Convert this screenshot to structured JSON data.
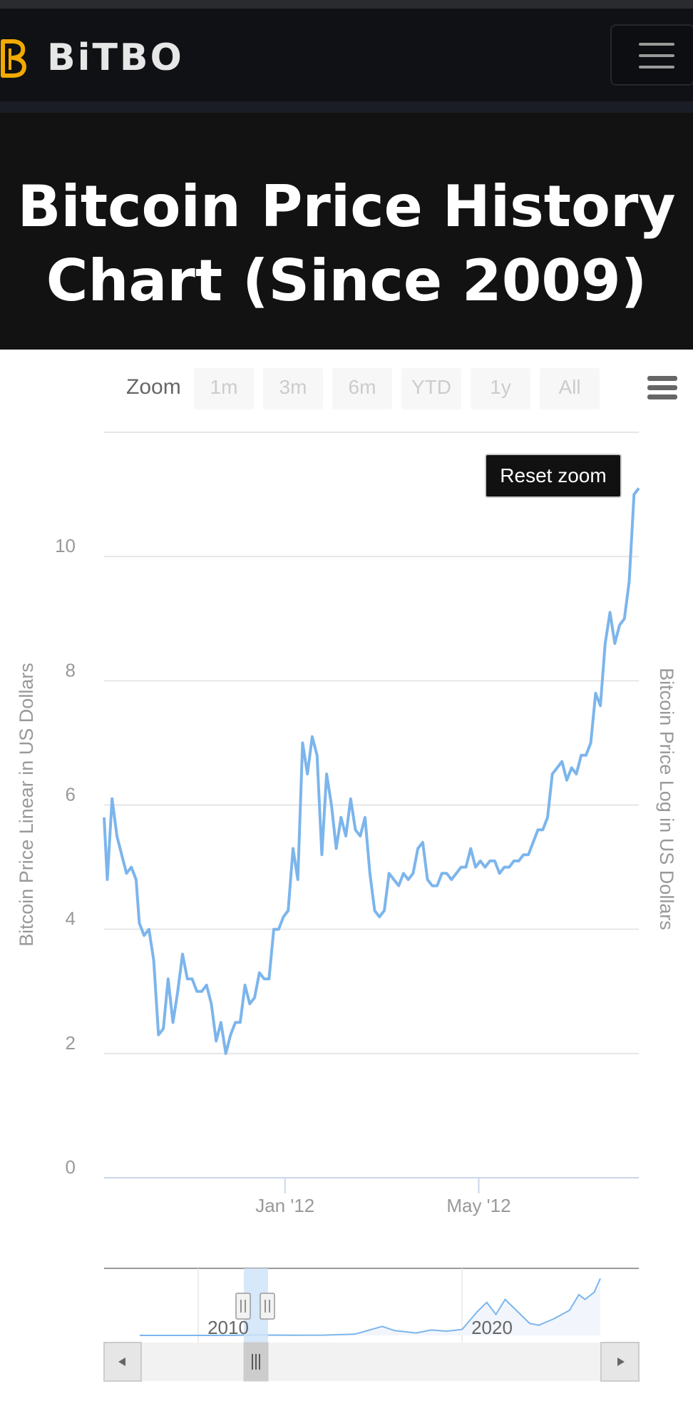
{
  "header": {
    "logo_text": "BiTBO",
    "colors": {
      "brand_orange": "#f2a900",
      "navbar": "#101114",
      "hero": "#121212"
    }
  },
  "hero": {
    "title": "Bitcoin Price History Chart (Since 2009)"
  },
  "zoom_bar": {
    "label": "Zoom",
    "buttons": [
      "1m",
      "3m",
      "6m",
      "YTD",
      "1y",
      "All"
    ]
  },
  "reset_zoom_label": "Reset zoom",
  "export_menu_icon": "hamburger-menu-icon",
  "chart_data": {
    "type": "line",
    "series": [
      {
        "color": "#7cb5ec",
        "x": [
          "2011-09-10",
          "2011-09-12",
          "2011-09-15",
          "2011-09-18",
          "2011-09-21",
          "2011-09-24",
          "2011-09-27",
          "2011-09-30",
          "2011-10-02",
          "2011-10-05",
          "2011-10-08",
          "2011-10-11",
          "2011-10-14",
          "2011-10-17",
          "2011-10-20",
          "2011-10-23",
          "2011-10-26",
          "2011-10-29",
          "2011-11-01",
          "2011-11-04",
          "2011-11-07",
          "2011-11-10",
          "2011-11-13",
          "2011-11-16",
          "2011-11-19",
          "2011-11-22",
          "2011-11-25",
          "2011-11-28",
          "2011-12-01",
          "2011-12-04",
          "2011-12-07",
          "2011-12-10",
          "2011-12-13",
          "2011-12-16",
          "2011-12-19",
          "2011-12-22",
          "2011-12-25",
          "2011-12-28",
          "2011-12-31",
          "2012-01-03",
          "2012-01-06",
          "2012-01-09",
          "2012-01-12",
          "2012-01-15",
          "2012-01-18",
          "2012-01-21",
          "2012-01-24",
          "2012-01-27",
          "2012-01-30",
          "2012-02-02",
          "2012-02-05",
          "2012-02-08",
          "2012-02-11",
          "2012-02-14",
          "2012-02-17",
          "2012-02-20",
          "2012-02-23",
          "2012-02-26",
          "2012-02-29",
          "2012-03-03",
          "2012-03-06",
          "2012-03-09",
          "2012-03-12",
          "2012-03-15",
          "2012-03-18",
          "2012-03-21",
          "2012-03-24",
          "2012-03-27",
          "2012-03-30",
          "2012-04-02",
          "2012-04-05",
          "2012-04-08",
          "2012-04-11",
          "2012-04-14",
          "2012-04-17",
          "2012-04-20",
          "2012-04-23",
          "2012-04-26",
          "2012-04-29",
          "2012-05-02",
          "2012-05-05",
          "2012-05-08",
          "2012-05-11",
          "2012-05-14",
          "2012-05-17",
          "2012-05-20",
          "2012-05-23",
          "2012-05-26",
          "2012-05-29",
          "2012-06-01",
          "2012-06-04",
          "2012-06-07",
          "2012-06-10",
          "2012-06-13",
          "2012-06-16",
          "2012-06-19",
          "2012-06-22",
          "2012-06-25",
          "2012-06-28",
          "2012-07-01",
          "2012-07-04",
          "2012-07-07",
          "2012-07-10",
          "2012-07-13",
          "2012-07-16",
          "2012-07-19",
          "2012-07-22",
          "2012-07-25",
          "2012-07-28",
          "2012-07-31",
          "2012-08-03",
          "2012-08-06",
          "2012-08-09"
        ],
        "y": [
          5.8,
          4.8,
          6.1,
          5.5,
          5.2,
          4.9,
          5.0,
          4.8,
          4.1,
          3.9,
          4.0,
          3.5,
          2.3,
          2.4,
          3.2,
          2.5,
          3.0,
          3.6,
          3.2,
          3.2,
          3.0,
          3.0,
          3.1,
          2.8,
          2.2,
          2.5,
          2.0,
          2.3,
          2.5,
          2.5,
          3.1,
          2.8,
          2.9,
          3.3,
          3.2,
          3.2,
          4.0,
          4.0,
          4.2,
          4.3,
          5.3,
          4.8,
          7.0,
          6.5,
          7.1,
          6.8,
          5.2,
          6.5,
          6.0,
          5.3,
          5.8,
          5.5,
          6.1,
          5.6,
          5.5,
          5.8,
          4.9,
          4.3,
          4.2,
          4.3,
          4.9,
          4.8,
          4.7,
          4.9,
          4.8,
          4.9,
          5.3,
          5.4,
          4.8,
          4.7,
          4.7,
          4.9,
          4.9,
          4.8,
          4.9,
          5.0,
          5.0,
          5.3,
          5.0,
          5.1,
          5.0,
          5.1,
          5.1,
          4.9,
          5.0,
          5.0,
          5.1,
          5.1,
          5.2,
          5.2,
          5.4,
          5.6,
          5.6,
          5.8,
          6.5,
          6.6,
          6.7,
          6.4,
          6.6,
          6.5,
          6.8,
          6.8,
          7.0,
          7.8,
          7.6,
          8.6,
          9.1,
          8.6,
          8.9,
          9.0,
          9.6,
          11.0,
          11.1
        ]
      }
    ],
    "xaxis": {
      "ticks": [
        "Jan '12",
        "May '12"
      ]
    },
    "yaxis_left": {
      "title": "Bitcoin Price Linear in US Dollars",
      "ticks": [
        0,
        2,
        4,
        6,
        8,
        10
      ],
      "range": [
        0,
        12
      ]
    },
    "yaxis_right": {
      "title": "Bitcoin Price Log in US Dollars"
    },
    "navigator": {
      "ticks": [
        "2010",
        "2020"
      ],
      "selection_range": [
        "2011-09-10",
        "2012-08-09"
      ],
      "overview_x": [
        2010.0,
        2011.0,
        2012.0,
        2013.0,
        2013.9,
        2014.2,
        2015.0,
        2016.0,
        2017.0,
        2017.9,
        2018.3,
        2019.0,
        2019.5,
        2020.0,
        2020.5,
        2021.0,
        2021.3,
        2021.6,
        2021.9,
        2022.3,
        2022.7,
        2023.0,
        2023.5,
        2024.0,
        2024.3,
        2024.5,
        2024.8,
        2025.0
      ],
      "overview_y": [
        0,
        1,
        5,
        120,
        900,
        500,
        300,
        500,
        2000,
        15000,
        8000,
        4000,
        9000,
        7000,
        10000,
        40000,
        55000,
        35000,
        60000,
        40000,
        20000,
        17000,
        28000,
        42000,
        68000,
        60000,
        72000,
        95000
      ]
    }
  }
}
